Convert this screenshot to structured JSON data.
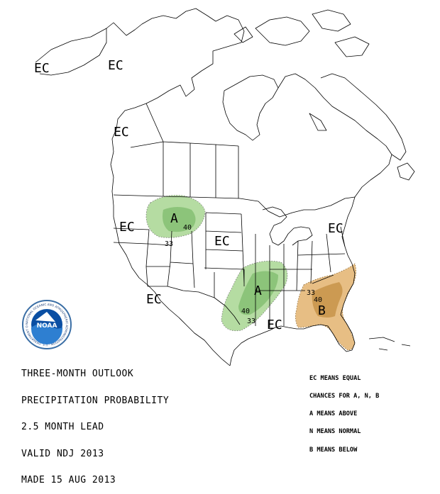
{
  "colors": {
    "above_light": "#b5dca2",
    "above_dark": "#8cc47a",
    "below_light": "#e7be84",
    "below_dark": "#cc9a52",
    "line": "#000000"
  },
  "map_labels": {
    "ec_alaska_west": "EC",
    "ec_alaska_east": "EC",
    "ec_bc": "EC",
    "ec_northwest": "EC",
    "ec_central": "EC",
    "ec_northeast": "EC",
    "ec_southwest": "EC",
    "ec_southeast": "EC",
    "above_north": "A",
    "above_south": "A",
    "below_se": "B"
  },
  "contour_labels": {
    "north_40": "40",
    "north_33": "33",
    "south_40": "40",
    "south_33": "33",
    "se_33": "33",
    "se_40": "40"
  },
  "title": {
    "line1": "THREE-MONTH OUTLOOK",
    "line2": "PRECIPITATION PROBABILITY",
    "line3": "2.5 MONTH LEAD",
    "line4": "VALID NDJ 2013",
    "line5": "MADE 15 AUG 2013"
  },
  "legend": {
    "line1": "EC MEANS EQUAL",
    "line2": "CHANCES FOR A, N, B",
    "line3": "A MEANS ABOVE",
    "line4": "N MEANS NORMAL",
    "line5": "B MEANS BELOW"
  },
  "logo": {
    "center_text": "NOAA",
    "ring_text": "NATIONAL OCEANIC AND ATMOSPHERIC ADMINISTRATION · U.S. DEPARTMENT OF COMMERCE"
  }
}
